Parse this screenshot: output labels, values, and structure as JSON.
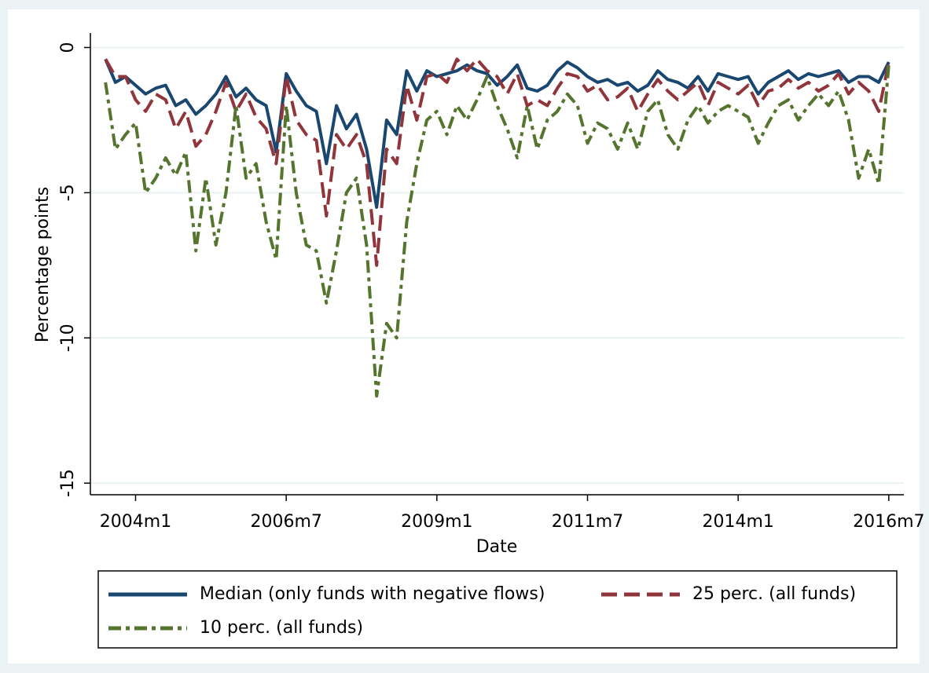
{
  "chart_data": {
    "type": "line",
    "x_label": "Date",
    "y_label": "Percentage points",
    "x": [
      "2003m7",
      "2003m9",
      "2003m11",
      "2004m1",
      "2004m3",
      "2004m5",
      "2004m7",
      "2004m9",
      "2004m11",
      "2005m1",
      "2005m3",
      "2005m5",
      "2005m7",
      "2005m9",
      "2005m11",
      "2006m1",
      "2006m3",
      "2006m5",
      "2006m7",
      "2006m9",
      "2006m11",
      "2007m1",
      "2007m3",
      "2007m5",
      "2007m7",
      "2007m9",
      "2007m11",
      "2008m1",
      "2008m3",
      "2008m5",
      "2008m7",
      "2008m9",
      "2008m11",
      "2009m1",
      "2009m3",
      "2009m5",
      "2009m7",
      "2009m9",
      "2009m11",
      "2010m1",
      "2010m3",
      "2010m5",
      "2010m7",
      "2010m9",
      "2010m11",
      "2011m1",
      "2011m3",
      "2011m5",
      "2011m7",
      "2011m9",
      "2011m11",
      "2012m1",
      "2012m3",
      "2012m5",
      "2012m7",
      "2012m9",
      "2012m11",
      "2013m1",
      "2013m3",
      "2013m5",
      "2013m7",
      "2013m9",
      "2013m11",
      "2014m1",
      "2014m3",
      "2014m5",
      "2014m7",
      "2014m9",
      "2014m11",
      "2015m1",
      "2015m3",
      "2015m5",
      "2015m7",
      "2015m9",
      "2015m11",
      "2016m1",
      "2016m3",
      "2016m5",
      "2016m7"
    ],
    "series": [
      {
        "name": "Median (only funds with negative flows)",
        "color": "#1a476f",
        "style": "solid",
        "values": [
          -0.4,
          -1.2,
          -1.0,
          -1.3,
          -1.6,
          -1.4,
          -1.3,
          -2.0,
          -1.8,
          -2.3,
          -2.0,
          -1.6,
          -1.0,
          -1.7,
          -1.4,
          -1.8,
          -2.0,
          -3.6,
          -0.9,
          -1.5,
          -2.0,
          -2.2,
          -4.0,
          -2.0,
          -2.8,
          -2.3,
          -3.5,
          -5.5,
          -2.5,
          -3.0,
          -0.8,
          -1.5,
          -0.8,
          -1.0,
          -0.9,
          -0.8,
          -0.6,
          -0.8,
          -0.9,
          -1.3,
          -1.0,
          -0.6,
          -1.4,
          -1.5,
          -1.3,
          -0.8,
          -0.5,
          -0.7,
          -1.0,
          -1.2,
          -1.1,
          -1.3,
          -1.2,
          -1.5,
          -1.3,
          -0.8,
          -1.1,
          -1.2,
          -1.4,
          -1.0,
          -1.5,
          -0.9,
          -1.0,
          -1.1,
          -1.0,
          -1.6,
          -1.2,
          -1.0,
          -0.8,
          -1.1,
          -0.9,
          -1.0,
          -0.9,
          -0.8,
          -1.2,
          -1.0,
          -1.0,
          -1.2,
          -0.5
        ]
      },
      {
        "name": "25 perc. (all funds)",
        "color": "#90353b",
        "style": "dash",
        "values": [
          -0.4,
          -1.0,
          -1.0,
          -1.8,
          -2.2,
          -1.6,
          -1.8,
          -2.8,
          -2.2,
          -3.4,
          -3.0,
          -2.2,
          -1.2,
          -2.2,
          -1.6,
          -2.4,
          -2.8,
          -4.0,
          -1.0,
          -2.5,
          -3.0,
          -3.2,
          -5.8,
          -3.0,
          -3.5,
          -3.0,
          -4.0,
          -7.5,
          -3.5,
          -4.0,
          -1.3,
          -2.5,
          -1.0,
          -0.9,
          -1.2,
          -0.4,
          -0.8,
          -0.4,
          -0.8,
          -1.0,
          -1.6,
          -0.9,
          -2.0,
          -1.8,
          -2.0,
          -1.4,
          -0.9,
          -1.0,
          -1.5,
          -1.3,
          -1.8,
          -1.7,
          -1.4,
          -2.2,
          -1.6,
          -1.1,
          -1.5,
          -1.8,
          -1.5,
          -1.2,
          -2.0,
          -1.2,
          -1.4,
          -1.6,
          -1.3,
          -2.0,
          -1.5,
          -1.4,
          -1.1,
          -1.4,
          -1.2,
          -1.5,
          -1.3,
          -0.9,
          -1.6,
          -1.2,
          -1.5,
          -2.2,
          -0.5
        ]
      },
      {
        "name": "10 perc. (all funds)",
        "color": "#55752f",
        "style": "dashdot",
        "values": [
          -1.2,
          -3.5,
          -3.0,
          -2.6,
          -5.0,
          -4.5,
          -3.8,
          -4.4,
          -3.6,
          -7.0,
          -4.5,
          -6.8,
          -5.0,
          -2.0,
          -4.5,
          -4.0,
          -6.0,
          -7.3,
          -2.0,
          -5.0,
          -6.8,
          -7.0,
          -8.8,
          -7.0,
          -5.0,
          -4.5,
          -6.8,
          -12.0,
          -9.5,
          -10.0,
          -6.0,
          -4.0,
          -2.5,
          -2.2,
          -3.0,
          -2.0,
          -2.5,
          -1.8,
          -1.0,
          -2.0,
          -2.8,
          -3.8,
          -2.0,
          -3.5,
          -2.5,
          -2.2,
          -1.6,
          -2.0,
          -3.3,
          -2.6,
          -2.8,
          -3.5,
          -2.6,
          -3.5,
          -2.2,
          -1.8,
          -3.0,
          -3.5,
          -2.5,
          -2.0,
          -2.6,
          -2.2,
          -2.0,
          -2.2,
          -2.4,
          -3.3,
          -2.6,
          -2.0,
          -1.8,
          -2.5,
          -2.0,
          -1.6,
          -2.0,
          -1.5,
          -2.5,
          -4.5,
          -3.5,
          -4.7,
          -0.6
        ]
      }
    ],
    "xlim": [
      "2003m4",
      "2016m10"
    ],
    "xticks": [
      "2004m1",
      "2006m7",
      "2009m1",
      "2011m7",
      "2014m1",
      "2016m7"
    ],
    "ylim": [
      -15.4,
      0.5
    ],
    "yticks": [
      0,
      -5,
      -10,
      -15
    ],
    "grid": true,
    "legend": "bottom"
  }
}
